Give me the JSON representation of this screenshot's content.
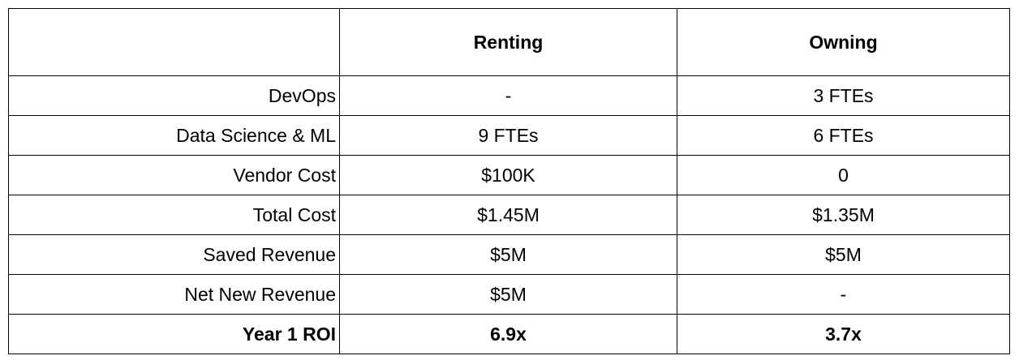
{
  "table": {
    "columns": [
      "",
      "Renting",
      "Owning"
    ],
    "rows": [
      {
        "label": "DevOps",
        "renting": "-",
        "owning": "3 FTEs",
        "bold": false
      },
      {
        "label": "Data Science & ML",
        "renting": "9 FTEs",
        "owning": "6 FTEs",
        "bold": false
      },
      {
        "label": "Vendor Cost",
        "renting": "$100K",
        "owning": "0",
        "bold": false
      },
      {
        "label": "Total Cost",
        "renting": "$1.45M",
        "owning": "$1.35M",
        "bold": false
      },
      {
        "label": "Saved Revenue",
        "renting": "$5M",
        "owning": "$5M",
        "bold": false
      },
      {
        "label": "Net New Revenue",
        "renting": "$5M",
        "owning": "-",
        "bold": false
      },
      {
        "label": "Year 1 ROI",
        "renting": "6.9x",
        "owning": "3.7x",
        "bold": true
      }
    ]
  }
}
